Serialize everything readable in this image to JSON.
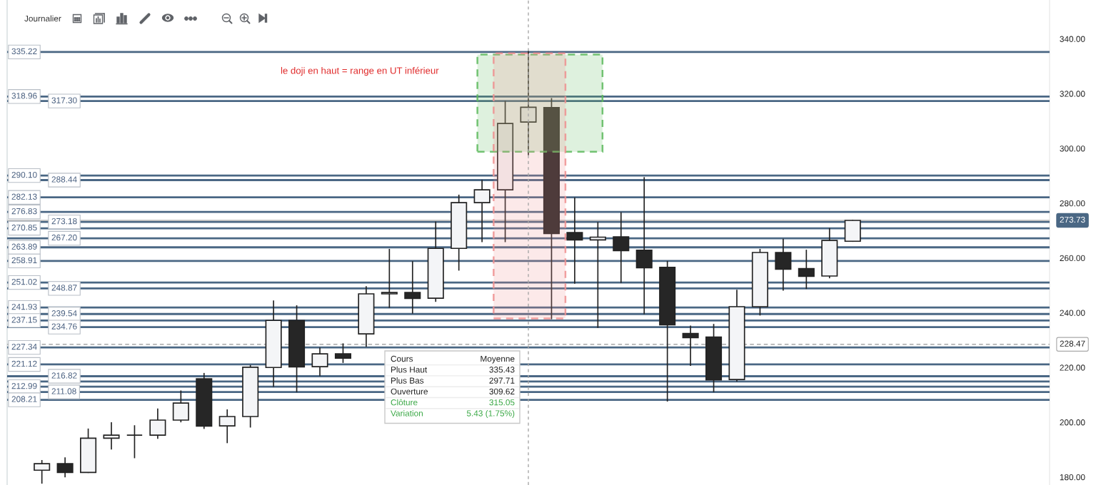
{
  "chart_data": {
    "type": "candlestick",
    "categories": [
      null,
      null,
      null,
      null,
      null,
      null,
      null,
      null,
      null,
      null,
      null,
      null,
      null,
      null,
      null,
      null,
      null,
      null,
      null,
      null,
      null,
      null,
      null,
      null,
      null,
      null,
      null,
      null,
      null,
      null,
      null,
      null,
      null,
      null,
      null,
      null,
      null,
      null,
      null,
      null,
      null,
      null,
      null,
      null,
      null
    ],
    "ohlc": [
      [
        null,
        null,
        null,
        null
      ],
      [
        182.5,
        186.0,
        177.8,
        184.9
      ],
      [
        184.9,
        187.0,
        180.1,
        181.7
      ],
      [
        181.7,
        197.5,
        181.7,
        194.2
      ],
      [
        194.2,
        199.8,
        190.3,
        195.3
      ],
      [
        195.3,
        198.7,
        187.1,
        195.3
      ],
      [
        195.3,
        204.8,
        194.2,
        200.8
      ],
      [
        200.8,
        211.4,
        200.2,
        207.0
      ],
      [
        215.9,
        217.8,
        197.8,
        198.6
      ],
      [
        198.7,
        204.5,
        192.6,
        202.1
      ],
      [
        202.1,
        220.7,
        198.3,
        220.1
      ],
      [
        220.0,
        244.3,
        213.1,
        237.2
      ],
      [
        237.2,
        242.5,
        211.2,
        220.2
      ],
      [
        220.3,
        227.1,
        217.1,
        225.0
      ],
      [
        225.0,
        228.6,
        221.9,
        223.4
      ],
      [
        232.3,
        249.5,
        227.8,
        246.9
      ],
      [
        246.9,
        263.1,
        242.0,
        247.4
      ],
      [
        247.4,
        258.6,
        239.9,
        245.2
      ],
      [
        245.3,
        273.1,
        244.2,
        263.5
      ],
      [
        263.5,
        282.9,
        255.6,
        280.2
      ],
      [
        280.2,
        288.3,
        266.0,
        284.9
      ],
      [
        284.9,
        317.1,
        266.0,
        309.1
      ],
      [
        309.62,
        335.43,
        297.71,
        315.05
      ],
      [
        314.9,
        318.2,
        237.9,
        268.9
      ],
      [
        269.3,
        281.9,
        250.8,
        266.6
      ],
      [
        266.6,
        272.9,
        234.7,
        267.6
      ],
      [
        267.7,
        276.5,
        251.1,
        262.7
      ],
      [
        262.8,
        289.3,
        239.7,
        256.4
      ],
      [
        256.6,
        258.7,
        207.8,
        235.6
      ],
      [
        232.4,
        235.1,
        220.8,
        230.9
      ],
      [
        231.1,
        235.7,
        211.2,
        215.5
      ],
      [
        215.6,
        248.2,
        215.1,
        242.2
      ],
      [
        242.2,
        263.1,
        239.2,
        262.0
      ],
      [
        262.0,
        266.8,
        248.3,
        255.9
      ],
      [
        256.1,
        262.8,
        248.9,
        253.3
      ],
      [
        253.4,
        270.7,
        252.8,
        266.4
      ],
      [
        266.1,
        273.73,
        266.1,
        273.73
      ],
      [
        null,
        null,
        null,
        null
      ],
      [
        null,
        null,
        null,
        null
      ],
      [
        null,
        null,
        null,
        null
      ],
      [
        null,
        null,
        null,
        null
      ],
      [
        null,
        null,
        null,
        null
      ],
      [
        null,
        null,
        null,
        null
      ],
      [
        null,
        null,
        null,
        null
      ],
      [
        null,
        null,
        null,
        null
      ]
    ],
    "ylim": [
      177.1,
      354.2
    ],
    "yticks": [
      {
        "value": 180,
        "label": "180.00"
      },
      {
        "value": 200,
        "label": "200.00"
      },
      {
        "value": 220,
        "label": "220.00"
      },
      {
        "value": 240,
        "label": "240.00"
      },
      {
        "value": 260,
        "label": "260.00"
      },
      {
        "value": 280,
        "label": "280.00"
      },
      {
        "value": 300,
        "label": "300.00"
      },
      {
        "value": 320,
        "label": "320.00"
      },
      {
        "value": 340,
        "label": "340.00"
      }
    ],
    "ref_lines": [
      {
        "axis": "y",
        "value": 335.22,
        "label": "335.22",
        "color": "#4a6784"
      },
      {
        "axis": "y",
        "value": 318.96,
        "label": "318.96",
        "color": "#4a6784"
      },
      {
        "axis": "y",
        "value": 317.3,
        "label": "317.30",
        "color": "#4a6784"
      },
      {
        "axis": "y",
        "value": 290.1,
        "label": "290.10",
        "color": "#4a6784"
      },
      {
        "axis": "y",
        "value": 288.44,
        "label": "288.44",
        "color": "#4a6784"
      },
      {
        "axis": "y",
        "value": 282.13,
        "label": "282.13",
        "color": "#4a6784"
      },
      {
        "axis": "y",
        "value": 276.83,
        "label": "276.83",
        "color": "#4a6784"
      },
      {
        "axis": "y",
        "value": 273.18,
        "label": "273.18",
        "color": "#4a6784"
      },
      {
        "axis": "y",
        "value": 270.85,
        "label": "270.85",
        "color": "#4a6784"
      },
      {
        "axis": "y",
        "value": 267.2,
        "label": "267.20",
        "color": "#4a6784"
      },
      {
        "axis": "y",
        "value": 263.89,
        "label": "263.89",
        "color": "#4a6784"
      },
      {
        "axis": "y",
        "value": 258.91,
        "label": "258.91",
        "color": "#4a6784"
      },
      {
        "axis": "y",
        "value": 251.02,
        "label": "251.02",
        "color": "#4a6784"
      },
      {
        "axis": "y",
        "value": 248.87,
        "label": "248.87",
        "color": "#4a6784"
      },
      {
        "axis": "y",
        "value": 241.93,
        "label": "241.93",
        "color": "#4a6784"
      },
      {
        "axis": "y",
        "value": 239.54,
        "label": "239.54",
        "color": "#4a6784"
      },
      {
        "axis": "y",
        "value": 237.15,
        "label": "237.15",
        "color": "#4a6784"
      },
      {
        "axis": "y",
        "value": 234.76,
        "label": "234.76",
        "color": "#4a6784"
      },
      {
        "axis": "y",
        "value": 227.34,
        "label": "227.34",
        "color": "#4a6784"
      },
      {
        "axis": "y",
        "value": 221.12,
        "label": "221.12",
        "color": "#4a6784"
      },
      {
        "axis": "y",
        "value": 216.82,
        "label": "216.82",
        "color": "#4a6784"
      },
      {
        "axis": "y",
        "value": 214.9,
        "color": "#4a6784"
      },
      {
        "axis": "y",
        "value": 212.99,
        "label": "212.99",
        "color": "#4a6784"
      },
      {
        "axis": "y",
        "value": 211.08,
        "label": "211.08",
        "color": "#4a6784"
      },
      {
        "axis": "y",
        "value": 208.21,
        "label": "208.21",
        "color": "#4a6784"
      },
      {
        "axis": "y",
        "value": 273.73,
        "label": "273.73",
        "color": "#b5b5b5",
        "line_style": "solid"
      },
      {
        "axis": "y",
        "value": 228.47,
        "label": "228.47",
        "color": "#a8a8a8",
        "line_style": "dashed"
      }
    ],
    "bands": [
      {
        "axis": "y",
        "from": 298.8,
        "to": 334.3,
        "color": "#5cb85c"
      },
      {
        "axis": "y",
        "from": 237.9,
        "to": 334.7,
        "color": "#ee8f8f"
      }
    ],
    "annotations": [
      "Journalier",
      "le doji en haut = range en UT inférieur",
      "Cours",
      "Moyenne",
      "Plus Haut",
      "335.43",
      "Plus Bas",
      "297.71",
      "Ouverture",
      "309.62",
      "Clôture",
      "315.05",
      "Variation",
      "5.43 (1.75%)"
    ]
  }
}
